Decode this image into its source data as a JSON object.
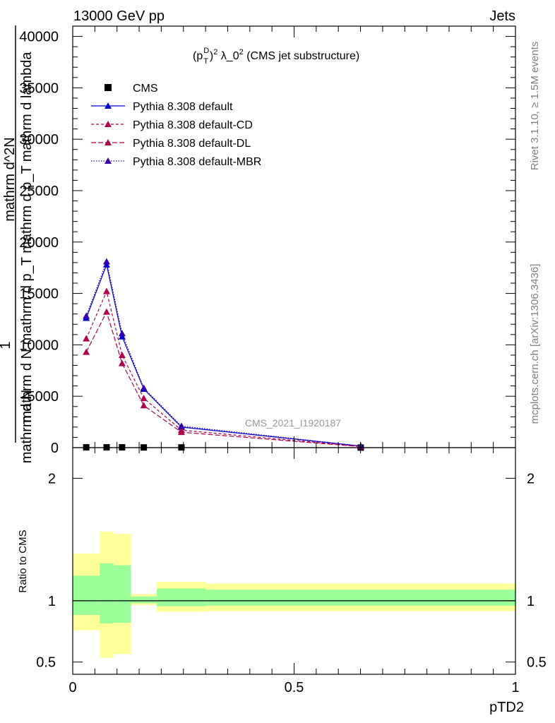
{
  "header": {
    "left": "13000 GeV pp",
    "right": "Jets"
  },
  "side_labels": {
    "rivet": "Rivet 3.1.10, ≥ 1.5M events",
    "mcplots": "mcplots.cern.ch [arXiv:1306.3436]"
  },
  "watermark": "CMS_2021_I1920187",
  "chart_data": [
    {
      "type": "line",
      "title": "(p_T^D)^2 λ_0^2 (CMS jet substructure)",
      "title_parts": {
        "base": "(p",
        "sup_d": "D",
        "sub_t": "T",
        "close": ")",
        "sup2": "2",
        "rest": " λ_0",
        "sup2b": "2",
        "tail": " (CMS jet substructure)"
      },
      "ylabel_lines": [
        "1",
        "mathrm d N",
        "mathrm d N mathrm d p_T mathrm d p_T mathrm d lambda",
        "mathrm d^2N"
      ],
      "ylabel_text": "mathrm d^2N / mathrm d N mathrm d p_T mathrm d p_T mathrm d lambda",
      "xlim": [
        0,
        1
      ],
      "ylim": [
        0,
        41000
      ],
      "yticks": [
        0,
        5000,
        10000,
        15000,
        20000,
        25000,
        30000,
        35000,
        40000
      ],
      "ytick_labels": [
        "0",
        "5000",
        "10000",
        "15000",
        "20000",
        "25000",
        "30000",
        "35000",
        "40000"
      ],
      "legend_position": "top-left",
      "x": [
        0.0305,
        0.0765,
        0.1115,
        0.1605,
        0.2455,
        0.6505
      ],
      "x_edges": [
        0,
        0.061,
        0.092,
        0.131,
        0.19,
        0.301,
        1.0
      ],
      "series": [
        {
          "name": "CMS",
          "marker": "square",
          "color": "#000000",
          "dash": "none",
          "values": [
            30,
            30,
            30,
            20,
            20,
            5
          ]
        },
        {
          "name": "Pythia 8.308 default",
          "marker": "triangle",
          "color": "#0000cc",
          "dash": "none",
          "values": [
            12600,
            17800,
            10800,
            5700,
            2000,
            150
          ]
        },
        {
          "name": "Pythia 8.308 default-CD",
          "marker": "triangle",
          "color": "#b0004c",
          "dash": "4,3",
          "values": [
            10600,
            15200,
            9000,
            4800,
            1700,
            120
          ]
        },
        {
          "name": "Pythia 8.308 default-DL",
          "marker": "triangle",
          "color": "#b0004c",
          "dash": "7,3",
          "values": [
            9300,
            13200,
            8200,
            4100,
            1500,
            100
          ]
        },
        {
          "name": "Pythia 8.308 default-MBR",
          "marker": "triangle",
          "color": "#3300aa",
          "dash": "1.5,2",
          "values": [
            12800,
            18100,
            11100,
            5800,
            2100,
            160
          ]
        }
      ]
    },
    {
      "type": "area",
      "ylabel": "Ratio to CMS",
      "xlabel": "pTD2",
      "xlim": [
        0,
        1
      ],
      "ylim": [
        0.4,
        2.25
      ],
      "yticks": [
        0.5,
        1,
        2
      ],
      "ytick_labels": [
        "0.5",
        "1",
        "2"
      ],
      "xticks": [
        0,
        0.5,
        1
      ],
      "xtick_labels": [
        "0",
        "0.5",
        "1"
      ],
      "bands": {
        "x_edges": [
          0,
          0.061,
          0.092,
          0.131,
          0.19,
          0.301,
          1.0
        ],
        "yellow_low": [
          0.76,
          0.535,
          0.565,
          0.965,
          0.91,
          0.915
        ],
        "yellow_high": [
          1.385,
          1.565,
          1.545,
          1.055,
          1.155,
          1.14
        ],
        "green_low": [
          0.885,
          0.815,
          0.82,
          0.98,
          0.955,
          0.96
        ],
        "green_high": [
          1.205,
          1.305,
          1.29,
          1.035,
          1.1,
          1.09
        ],
        "yellow_color": "#ffff99",
        "green_color": "#99ff99"
      },
      "reference": 1
    }
  ]
}
